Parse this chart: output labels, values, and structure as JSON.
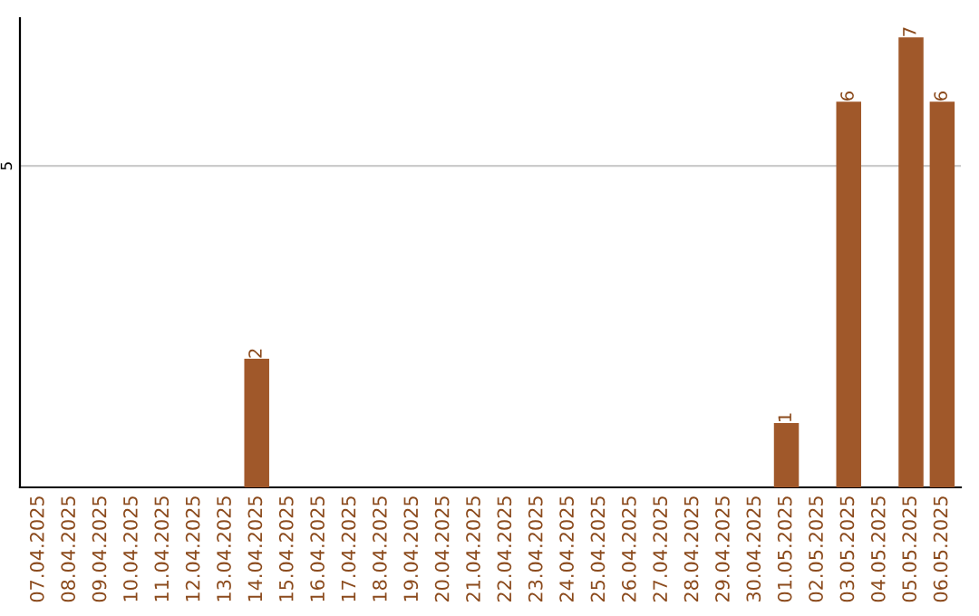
{
  "chart_data": {
    "type": "bar",
    "categories": [
      "07.04.2025",
      "08.04.2025",
      "09.04.2025",
      "10.04.2025",
      "11.04.2025",
      "12.04.2025",
      "13.04.2025",
      "14.04.2025",
      "15.04.2025",
      "16.04.2025",
      "17.04.2025",
      "18.04.2025",
      "19.04.2025",
      "20.04.2025",
      "21.04.2025",
      "22.04.2025",
      "23.04.2025",
      "24.04.2025",
      "25.04.2025",
      "26.04.2025",
      "27.04.2025",
      "28.04.2025",
      "29.04.2025",
      "30.04.2025",
      "01.05.2025",
      "02.05.2025",
      "03.05.2025",
      "04.05.2025",
      "05.05.2025",
      "06.05.2025"
    ],
    "values": [
      0,
      0,
      0,
      0,
      0,
      0,
      0,
      2,
      0,
      0,
      0,
      0,
      0,
      0,
      0,
      0,
      0,
      0,
      0,
      0,
      0,
      0,
      0,
      0,
      1,
      0,
      6,
      0,
      7,
      6
    ],
    "value_labels": [
      null,
      null,
      null,
      null,
      null,
      null,
      null,
      "2",
      null,
      null,
      null,
      null,
      null,
      null,
      null,
      null,
      null,
      null,
      null,
      null,
      null,
      null,
      null,
      null,
      "1",
      null,
      "6",
      null,
      "7",
      "6"
    ],
    "color": "#a0582a",
    "ylim": [
      0,
      7.3
    ],
    "yticks": [
      5
    ],
    "grid": "y"
  }
}
